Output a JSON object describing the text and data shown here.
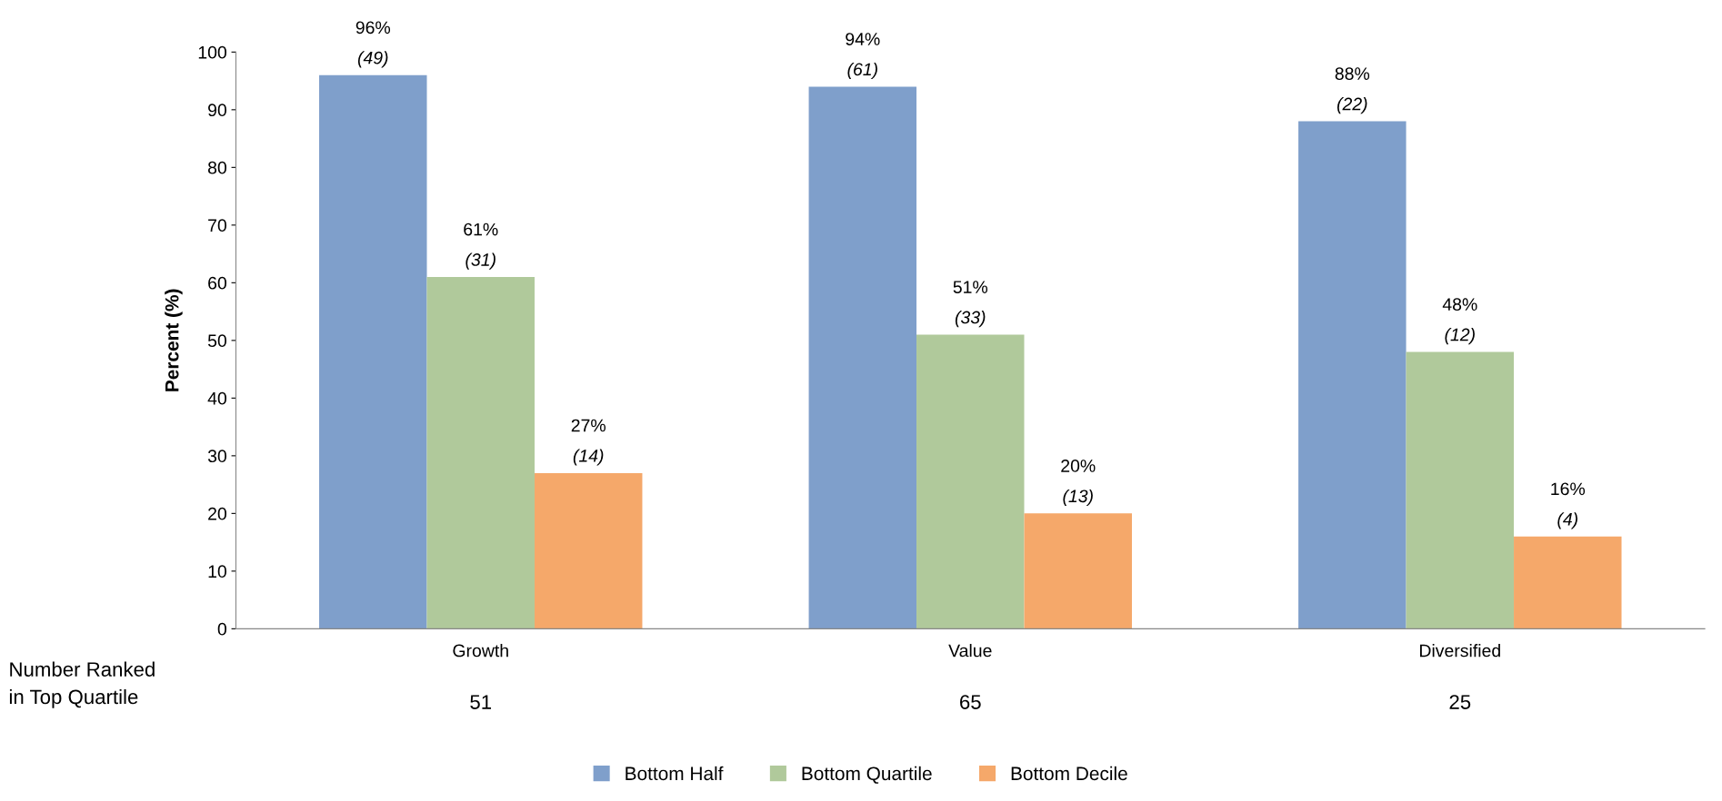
{
  "chart_data": {
    "type": "bar",
    "ylabel": "Percent (%)",
    "categories": [
      "Growth",
      "Value",
      "Diversified"
    ],
    "series": [
      {
        "name": "Bottom Half",
        "color": "#7f9fcb",
        "values": [
          96,
          94,
          88
        ],
        "value_labels": [
          "96%\n(49)",
          "94%\n(61)",
          "88%\n(22)"
        ]
      },
      {
        "name": "Bottom Quartile",
        "color": "#b0c99b",
        "values": [
          61,
          51,
          48
        ],
        "value_labels": [
          "61%\n(31)",
          "51%\n(33)",
          "48%\n(12)"
        ]
      },
      {
        "name": "Bottom Decile",
        "color": "#f5a86a",
        "values": [
          27,
          20,
          16
        ],
        "value_labels": [
          "27%\n(14)",
          "20%\n(13)",
          "16%\n(4)"
        ]
      }
    ],
    "ylim": [
      0,
      100
    ],
    "yticks": [
      0,
      10,
      20,
      30,
      40,
      50,
      60,
      70,
      80,
      90,
      100
    ],
    "grid": false,
    "legend": "bottom",
    "annotations": [
      "Number Ranked\nin Top Quartile",
      "51",
      "65",
      "25"
    ]
  }
}
